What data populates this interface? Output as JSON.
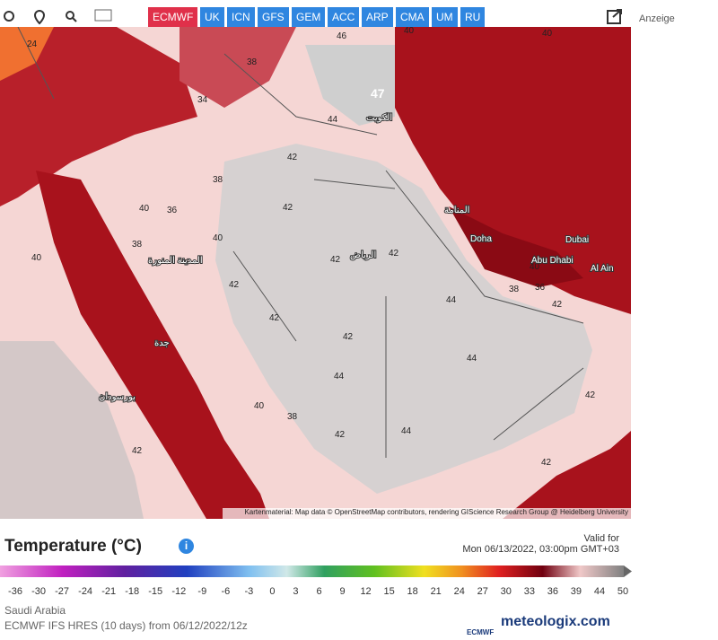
{
  "toolbar": {
    "models": [
      "ECMWF",
      "UK",
      "ICN",
      "GFS",
      "GEM",
      "ACC",
      "ARP",
      "CMA",
      "UM",
      "RU"
    ]
  },
  "ad": "Anzeige",
  "map": {
    "temperatures": [
      "24",
      "38",
      "46",
      "40",
      "40",
      "34",
      "44",
      "42",
      "38",
      "40",
      "36",
      "42",
      "40",
      "42",
      "42",
      "38",
      "40",
      "42",
      "44",
      "42",
      "42",
      "44",
      "44",
      "42",
      "40",
      "38",
      "42",
      "44",
      "42",
      "42",
      "40",
      "38",
      "36",
      "42"
    ],
    "peak": "47",
    "cities": [
      "الرياض",
      "Doha",
      "Dubai",
      "Abu Dhabi",
      "Al Ain",
      "الكويت",
      "المنامة",
      "جدة",
      "بورسودان",
      "المدينة المنورة"
    ],
    "attribution": "Kartenmaterial: Map data © OpenStreetMap contributors, rendering GIScience Research Group @ Heidelberg University"
  },
  "legend": {
    "title": "Temperature (°C)",
    "valid_label": "Valid for",
    "valid_time": "Mon 06/13/2022, 03:00pm GMT+03",
    "ticks": [
      "-36",
      "-30",
      "-27",
      "-24",
      "-21",
      "-18",
      "-15",
      "-12",
      "-9",
      "-6",
      "-3",
      "0",
      "3",
      "6",
      "9",
      "12",
      "15",
      "18",
      "21",
      "24",
      "27",
      "30",
      "33",
      "36",
      "39",
      "44",
      "50"
    ]
  },
  "footer": {
    "region": "Saudi Arabia",
    "model_run": "ECMWF IFS HRES (10 days) from 06/12/2022/12z",
    "logo": "meteologix.com",
    "logo_small": "ECMWF"
  }
}
